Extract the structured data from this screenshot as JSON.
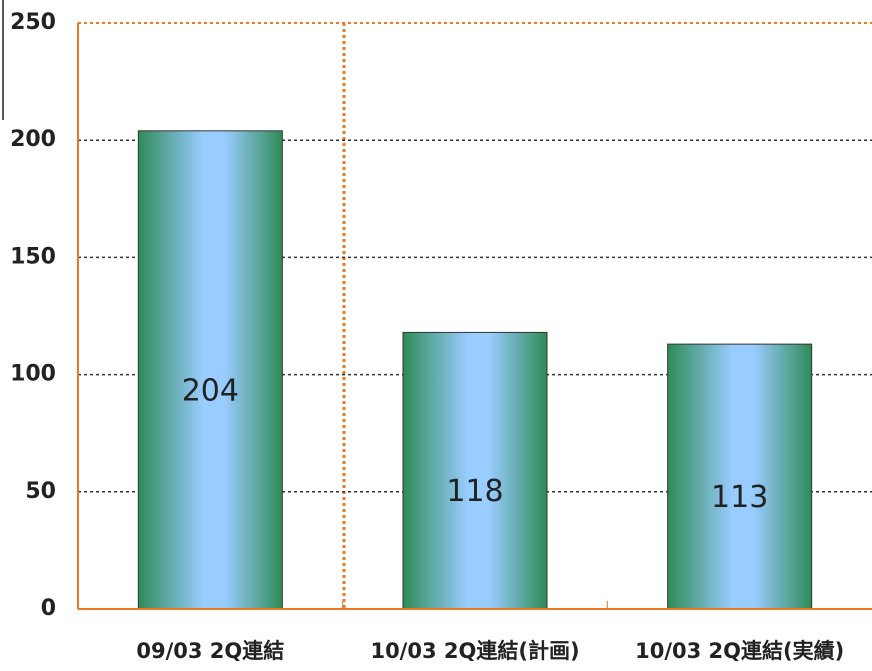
{
  "chart_data": {
    "type": "bar",
    "categories": [
      "09/03 2Q連結",
      "10/03 2Q連結(計画)",
      "10/03 2Q連結(実績)"
    ],
    "values": [
      204,
      118,
      113
    ],
    "color": "#2e8b57",
    "ylim": [
      0,
      250
    ],
    "yticks": [
      0,
      50,
      100,
      150,
      200,
      250
    ],
    "grid": true
  }
}
